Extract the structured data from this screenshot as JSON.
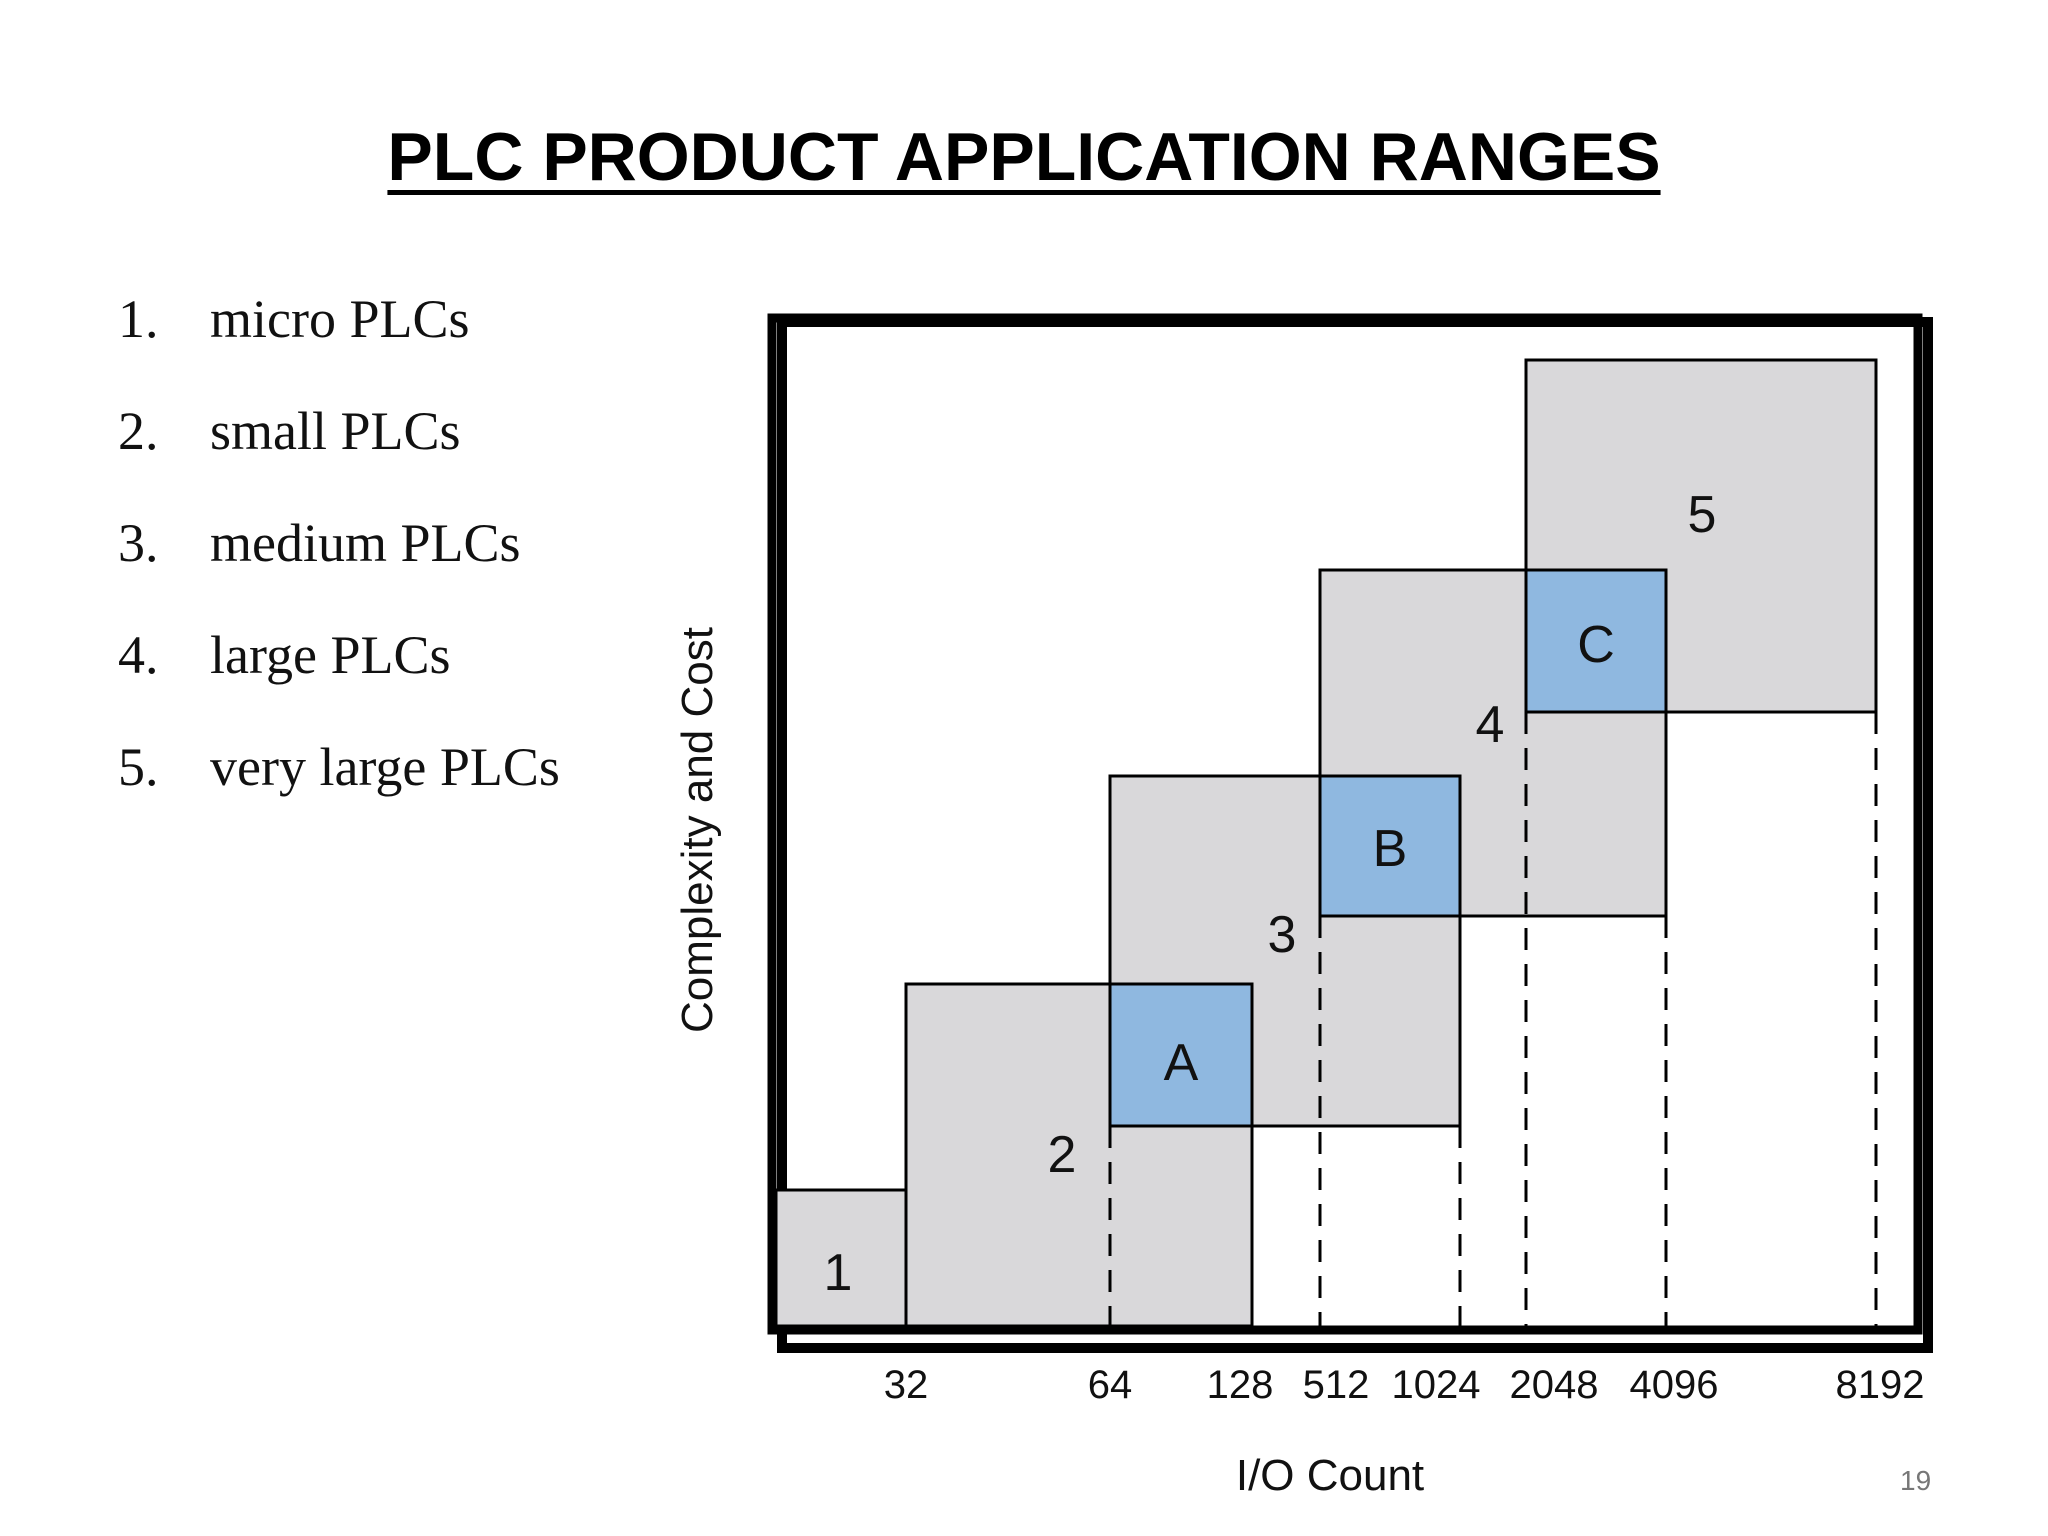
{
  "slide": {
    "title": "PLC PRODUCT APPLICATION RANGES",
    "page_number": "19"
  },
  "legend": [
    {
      "num": "1.",
      "label": "micro PLCs"
    },
    {
      "num": "2.",
      "label": "small PLCs"
    },
    {
      "num": "3.",
      "label": "medium PLCs"
    },
    {
      "num": "4.",
      "label": "large PLCs"
    },
    {
      "num": "5.",
      "label": "very large PLCs"
    }
  ],
  "diagram": {
    "x_axis_label": "I/O Count",
    "y_axis_label": "Complexity and Cost",
    "x_ticks": [
      "32",
      "64",
      "128",
      "512",
      "1024",
      "2048",
      "4096",
      "8192"
    ],
    "region_labels": [
      "1",
      "2",
      "3",
      "4",
      "5"
    ],
    "overlap_labels": [
      "A",
      "B",
      "C"
    ],
    "colors": {
      "region_fill": "#d9d8da",
      "overlap_fill": "#8fb8e0",
      "stroke": "#000000"
    }
  }
}
